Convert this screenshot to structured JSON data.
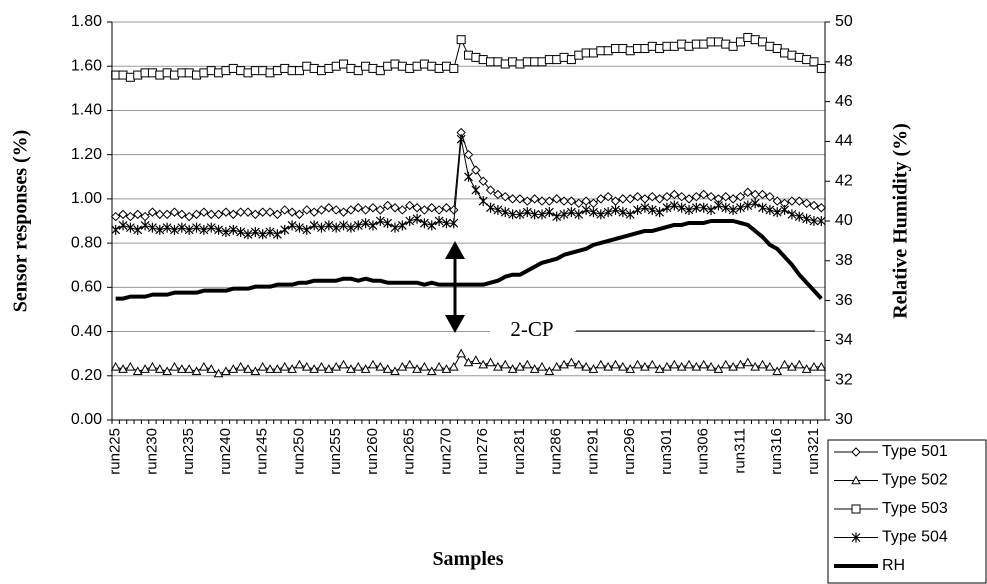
{
  "chart_data": {
    "type": "line",
    "y_label": "Sensor responses (%)",
    "y2_label": "Relative Humidity (%)",
    "x_label": "Samples",
    "annotation": "2-CP",
    "categories": [
      "run225",
      null,
      null,
      null,
      null,
      "run230",
      null,
      null,
      null,
      null,
      "run235",
      null,
      null,
      null,
      null,
      "run240",
      null,
      null,
      null,
      null,
      "run245",
      null,
      null,
      null,
      null,
      "run250",
      null,
      null,
      null,
      null,
      "run255",
      null,
      null,
      null,
      null,
      "run260",
      null,
      null,
      null,
      null,
      "run265",
      null,
      null,
      null,
      null,
      "run270",
      null,
      null,
      null,
      null,
      "run276",
      null,
      null,
      null,
      null,
      "run281",
      null,
      null,
      null,
      null,
      "run286",
      null,
      null,
      null,
      null,
      "run291",
      null,
      null,
      null,
      null,
      "run296",
      null,
      null,
      null,
      null,
      "run301",
      null,
      null,
      null,
      null,
      "run306",
      null,
      null,
      null,
      null,
      "run311",
      null,
      null,
      null,
      null,
      "run316",
      null,
      null,
      null,
      null,
      "run321",
      null
    ],
    "ylim": [
      0,
      1.8
    ],
    "yticks": [
      {
        "value": 0,
        "label": "0.00"
      },
      {
        "value": 0.2,
        "label": "0.20"
      },
      {
        "value": 0.4,
        "label": "0.40"
      },
      {
        "value": 0.6,
        "label": "0.60"
      },
      {
        "value": 0.8,
        "label": "0.80"
      },
      {
        "value": 1,
        "label": "1.00"
      },
      {
        "value": 1.2,
        "label": "1.20"
      },
      {
        "value": 1.4,
        "label": "1.40"
      },
      {
        "value": 1.6,
        "label": "1.60"
      },
      {
        "value": 1.8,
        "label": "1.80"
      }
    ],
    "y2lim": [
      30,
      50
    ],
    "y2ticks": [
      30,
      32,
      34,
      36,
      38,
      40,
      42,
      44,
      46,
      48,
      50
    ],
    "grid": true,
    "legend": "lower right",
    "series": [
      {
        "name": "Type 501",
        "color": "#000000",
        "marker": "diamond",
        "values": [
          0.92,
          0.93,
          0.92,
          0.93,
          0.92,
          0.94,
          0.93,
          0.93,
          0.94,
          0.93,
          0.92,
          0.93,
          0.94,
          0.93,
          0.93,
          0.94,
          0.93,
          0.94,
          0.94,
          0.93,
          0.94,
          0.94,
          0.93,
          0.95,
          0.94,
          0.93,
          0.95,
          0.94,
          0.95,
          0.96,
          0.95,
          0.94,
          0.95,
          0.96,
          0.95,
          0.96,
          0.95,
          0.97,
          0.96,
          0.95,
          0.97,
          0.96,
          0.95,
          0.96,
          0.95,
          0.96,
          0.95,
          1.3,
          1.2,
          1.13,
          1.08,
          1.04,
          1.02,
          1.01,
          1.0,
          1.0,
          0.99,
          1.0,
          0.99,
          0.99,
          1.0,
          0.99,
          0.99,
          0.98,
          0.99,
          0.98,
          1.0,
          1.01,
          0.99,
          1.0,
          1.0,
          1.01,
          1.0,
          1.01,
          1.0,
          1.01,
          1.02,
          1.01,
          1.0,
          1.01,
          1.02,
          1.01,
          1.0,
          1.01,
          1.0,
          1.01,
          1.03,
          1.02,
          1.02,
          1.01,
          0.99,
          0.98,
          0.99,
          0.99,
          0.98,
          0.97,
          0.96
        ]
      },
      {
        "name": "Type 502",
        "color": "#000000",
        "marker": "triangle",
        "values": [
          0.24,
          0.23,
          0.24,
          0.22,
          0.23,
          0.24,
          0.23,
          0.22,
          0.24,
          0.23,
          0.23,
          0.22,
          0.24,
          0.23,
          0.21,
          0.22,
          0.23,
          0.24,
          0.23,
          0.22,
          0.24,
          0.23,
          0.23,
          0.24,
          0.23,
          0.25,
          0.24,
          0.23,
          0.24,
          0.23,
          0.24,
          0.25,
          0.23,
          0.24,
          0.23,
          0.25,
          0.24,
          0.23,
          0.22,
          0.24,
          0.25,
          0.23,
          0.24,
          0.22,
          0.24,
          0.23,
          0.24,
          0.3,
          0.26,
          0.27,
          0.25,
          0.26,
          0.24,
          0.25,
          0.23,
          0.24,
          0.25,
          0.23,
          0.24,
          0.22,
          0.24,
          0.25,
          0.26,
          0.25,
          0.24,
          0.23,
          0.25,
          0.24,
          0.25,
          0.24,
          0.23,
          0.25,
          0.24,
          0.25,
          0.23,
          0.24,
          0.25,
          0.24,
          0.25,
          0.24,
          0.25,
          0.24,
          0.23,
          0.25,
          0.24,
          0.25,
          0.26,
          0.24,
          0.25,
          0.24,
          0.22,
          0.25,
          0.24,
          0.25,
          0.23,
          0.24,
          0.24
        ]
      },
      {
        "name": "Type 503",
        "color": "#000000",
        "marker": "square",
        "values": [
          1.56,
          1.56,
          1.55,
          1.56,
          1.57,
          1.57,
          1.56,
          1.57,
          1.56,
          1.57,
          1.57,
          1.56,
          1.57,
          1.58,
          1.57,
          1.58,
          1.59,
          1.58,
          1.57,
          1.58,
          1.58,
          1.57,
          1.58,
          1.59,
          1.58,
          1.58,
          1.6,
          1.59,
          1.58,
          1.59,
          1.6,
          1.61,
          1.59,
          1.58,
          1.6,
          1.59,
          1.58,
          1.6,
          1.61,
          1.6,
          1.59,
          1.6,
          1.61,
          1.6,
          1.59,
          1.6,
          1.59,
          1.72,
          1.65,
          1.64,
          1.63,
          1.62,
          1.62,
          1.61,
          1.62,
          1.61,
          1.62,
          1.62,
          1.62,
          1.63,
          1.63,
          1.64,
          1.63,
          1.65,
          1.66,
          1.66,
          1.67,
          1.67,
          1.68,
          1.68,
          1.67,
          1.68,
          1.68,
          1.69,
          1.68,
          1.69,
          1.69,
          1.7,
          1.69,
          1.7,
          1.7,
          1.71,
          1.71,
          1.7,
          1.69,
          1.71,
          1.73,
          1.72,
          1.71,
          1.69,
          1.68,
          1.66,
          1.65,
          1.64,
          1.63,
          1.62,
          1.59
        ]
      },
      {
        "name": "Type 504",
        "color": "#000000",
        "marker": "asterisk",
        "values": [
          0.86,
          0.88,
          0.87,
          0.86,
          0.88,
          0.87,
          0.86,
          0.87,
          0.86,
          0.87,
          0.86,
          0.87,
          0.86,
          0.87,
          0.86,
          0.85,
          0.86,
          0.85,
          0.84,
          0.85,
          0.84,
          0.85,
          0.84,
          0.86,
          0.88,
          0.87,
          0.86,
          0.88,
          0.87,
          0.88,
          0.87,
          0.88,
          0.87,
          0.88,
          0.89,
          0.88,
          0.9,
          0.89,
          0.87,
          0.88,
          0.9,
          0.91,
          0.89,
          0.88,
          0.9,
          0.89,
          0.89,
          1.27,
          1.1,
          1.04,
          0.99,
          0.96,
          0.95,
          0.94,
          0.93,
          0.93,
          0.94,
          0.93,
          0.93,
          0.94,
          0.92,
          0.93,
          0.94,
          0.93,
          0.95,
          0.94,
          0.93,
          0.94,
          0.95,
          0.94,
          0.93,
          0.95,
          0.96,
          0.95,
          0.94,
          0.96,
          0.97,
          0.96,
          0.95,
          0.96,
          0.96,
          0.95,
          0.97,
          0.96,
          0.95,
          0.96,
          0.97,
          0.98,
          0.96,
          0.95,
          0.94,
          0.95,
          0.93,
          0.92,
          0.91,
          0.9,
          0.9
        ]
      },
      {
        "name": "RH",
        "color": "#000000",
        "axis": "y2",
        "width": 4,
        "values": [
          36.1,
          36.1,
          36.2,
          36.2,
          36.2,
          36.3,
          36.3,
          36.3,
          36.4,
          36.4,
          36.4,
          36.4,
          36.5,
          36.5,
          36.5,
          36.5,
          36.6,
          36.6,
          36.6,
          36.7,
          36.7,
          36.7,
          36.8,
          36.8,
          36.8,
          36.9,
          36.9,
          37.0,
          37.0,
          37.0,
          37.0,
          37.1,
          37.1,
          37.0,
          37.1,
          37.0,
          37.0,
          36.9,
          36.9,
          36.9,
          36.9,
          36.9,
          36.8,
          36.9,
          36.8,
          36.8,
          36.8,
          36.8,
          36.8,
          36.8,
          36.8,
          36.9,
          37.0,
          37.2,
          37.3,
          37.3,
          37.5,
          37.7,
          37.9,
          38.0,
          38.1,
          38.3,
          38.4,
          38.5,
          38.6,
          38.8,
          38.9,
          39.0,
          39.1,
          39.2,
          39.3,
          39.4,
          39.5,
          39.5,
          39.6,
          39.7,
          39.8,
          39.8,
          39.9,
          39.9,
          39.9,
          40.0,
          40.0,
          40.0,
          40.0,
          39.9,
          39.8,
          39.5,
          39.2,
          38.8,
          38.6,
          38.2,
          37.8,
          37.3,
          36.9,
          36.5,
          36.1
        ]
      }
    ]
  }
}
